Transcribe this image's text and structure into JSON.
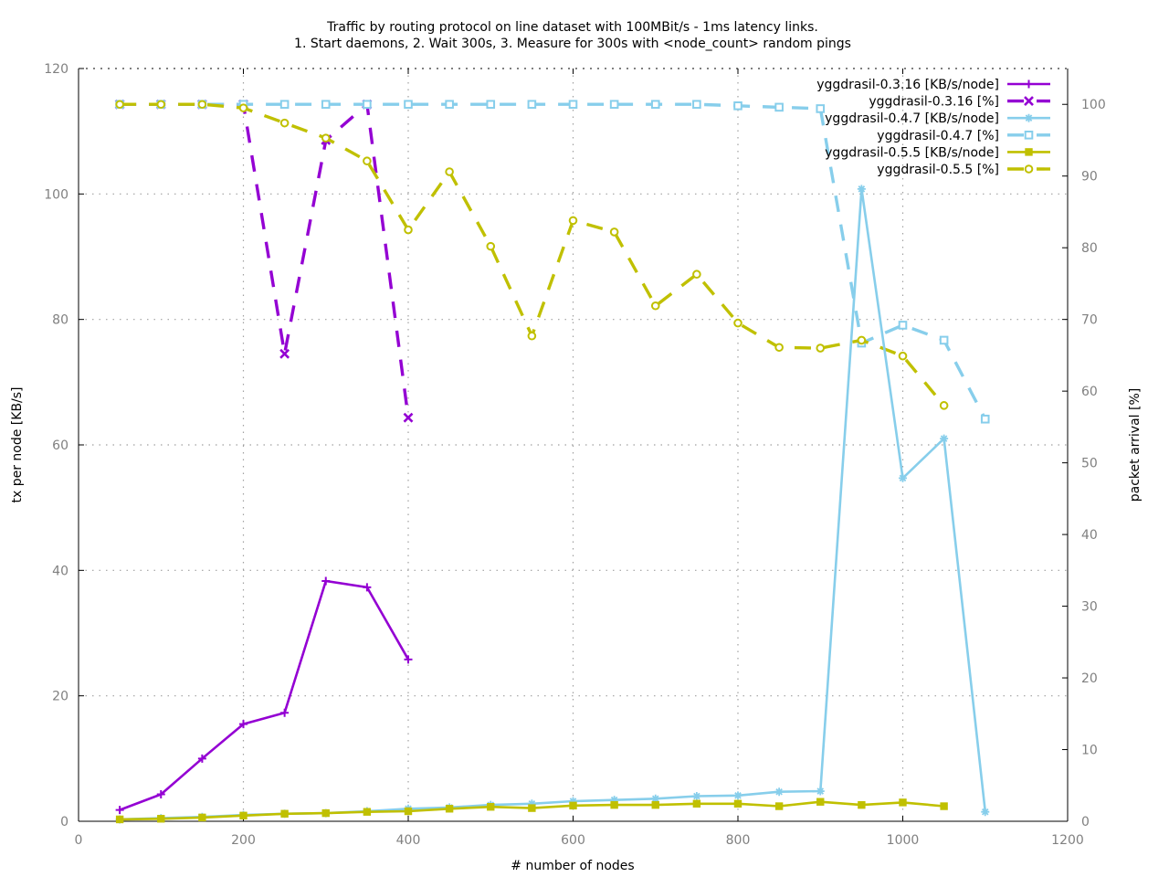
{
  "chart_data": {
    "type": "line",
    "title": "Traffic by routing protocol on line dataset with 100MBit/s - 1ms latency links.",
    "subtitle": "1. Start daemons, 2. Wait 300s, 3. Measure for 300s with <node_count> random pings",
    "xlabel": "# number of nodes",
    "ylabel": "tx per node [KB/s]",
    "y2label": "packet arrival [%]",
    "xlim": [
      0,
      1200
    ],
    "ylim": [
      0,
      120
    ],
    "y2lim": [
      0,
      105
    ],
    "x_ticks": [
      0,
      200,
      400,
      600,
      800,
      1000,
      1200
    ],
    "y_ticks": [
      0,
      20,
      40,
      60,
      80,
      100,
      120
    ],
    "y2_ticks": [
      0,
      10,
      20,
      30,
      40,
      50,
      60,
      70,
      80,
      90,
      100
    ],
    "grid": true,
    "legend_position": "top-right",
    "series": [
      {
        "name": "yggdrasil-0.3.16 [KB/s/node]",
        "axis": "y1",
        "color": "#9400D3",
        "dash": false,
        "marker": "plus",
        "x": [
          50,
          100,
          150,
          200,
          250,
          300,
          350,
          400
        ],
        "y": [
          1.8,
          4.3,
          10.0,
          15.5,
          17.3,
          38.3,
          37.3,
          25.8
        ]
      },
      {
        "name": "yggdrasil-0.3.16 [%]",
        "axis": "y2",
        "color": "#9400D3",
        "dash": true,
        "marker": "cross",
        "x": [
          50,
          100,
          150,
          200,
          250,
          300,
          350,
          400
        ],
        "y": [
          100,
          100,
          100,
          100,
          65.2,
          95,
          100,
          56.3
        ]
      },
      {
        "name": "yggdrasil-0.4.7 [KB/s/node]",
        "axis": "y1",
        "color": "#87CEEB",
        "dash": false,
        "marker": "star",
        "x": [
          50,
          100,
          150,
          200,
          250,
          300,
          350,
          400,
          450,
          500,
          550,
          600,
          650,
          700,
          750,
          800,
          850,
          900,
          950,
          1000,
          1050,
          1100
        ],
        "y": [
          0.3,
          0.5,
          0.7,
          1.0,
          1.2,
          1.3,
          1.6,
          2.0,
          2.2,
          2.6,
          2.8,
          3.2,
          3.4,
          3.6,
          4.0,
          4.1,
          4.7,
          4.8,
          100.8,
          54.7,
          61.0,
          1.5
        ]
      },
      {
        "name": "yggdrasil-0.4.7 [%]",
        "axis": "y2",
        "color": "#87CEEB",
        "dash": true,
        "marker": "open-square",
        "x": [
          50,
          100,
          150,
          200,
          250,
          300,
          350,
          400,
          450,
          500,
          550,
          600,
          650,
          700,
          750,
          800,
          850,
          900,
          950,
          1000,
          1050,
          1100
        ],
        "y": [
          100,
          100,
          100,
          100,
          100,
          100,
          100,
          100,
          100,
          100,
          100,
          100,
          100,
          100,
          100,
          99.8,
          99.6,
          99.4,
          66.7,
          69.2,
          67.1,
          56.1
        ]
      },
      {
        "name": "yggdrasil-0.5.5 [KB/s/node]",
        "axis": "y1",
        "color": "#C0C000",
        "dash": false,
        "marker": "filled-square",
        "x": [
          50,
          100,
          150,
          200,
          250,
          300,
          350,
          400,
          450,
          500,
          550,
          600,
          650,
          700,
          750,
          800,
          850,
          900,
          950,
          1000,
          1050
        ],
        "y": [
          0.3,
          0.4,
          0.6,
          0.9,
          1.2,
          1.3,
          1.5,
          1.6,
          2.0,
          2.3,
          2.1,
          2.5,
          2.6,
          2.6,
          2.8,
          2.8,
          2.4,
          3.1,
          2.6,
          3.0,
          2.4
        ]
      },
      {
        "name": "yggdrasil-0.5.5 [%]",
        "axis": "y2",
        "color": "#C0C000",
        "dash": true,
        "marker": "open-circle",
        "x": [
          50,
          100,
          150,
          200,
          250,
          300,
          350,
          400,
          450,
          500,
          550,
          600,
          650,
          700,
          750,
          800,
          850,
          900,
          950,
          1000,
          1050
        ],
        "y": [
          100,
          100,
          100,
          99.5,
          97.4,
          95.3,
          92.1,
          82.5,
          90.6,
          80.2,
          67.7,
          83.8,
          82.2,
          71.9,
          76.3,
          69.5,
          66.1,
          66.0,
          67.1,
          64.9,
          58.0
        ]
      }
    ]
  }
}
